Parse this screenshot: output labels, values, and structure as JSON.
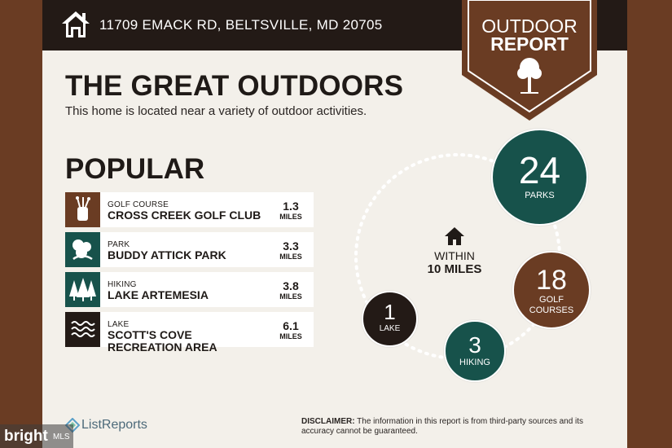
{
  "header": {
    "address": "11709 EMACK RD, BELTSVILLE, MD 20705",
    "home_icon": "house-icon"
  },
  "badge": {
    "line1": "OUTDOOR",
    "line2": "REPORT",
    "icon": "tree-icon"
  },
  "title": "THE GREAT OUTDOORS",
  "subtitle": "This home is located near a variety of outdoor activities.",
  "popular": {
    "heading": "POPULAR",
    "items": [
      {
        "category": "GOLF COURSE",
        "name": "CROSS CREEK GOLF CLUB",
        "distance": "1.3",
        "unit": "MILES",
        "icon": "golf-bag-icon",
        "color": "#6a3c23"
      },
      {
        "category": "PARK",
        "name": "BUDDY ATTICK PARK",
        "distance": "3.3",
        "unit": "MILES",
        "icon": "park-trees-icon",
        "color": "#17524b"
      },
      {
        "category": "HIKING",
        "name": "LAKE ARTEMESIA",
        "distance": "3.8",
        "unit": "MILES",
        "icon": "pine-trees-icon",
        "color": "#17524b"
      },
      {
        "category": "LAKE",
        "name": "SCOTT'S COVE RECREATION AREA",
        "distance": "6.1",
        "unit": "MILES",
        "icon": "waves-icon",
        "color": "#231a16"
      }
    ]
  },
  "within": {
    "line1": "WITHIN",
    "line2": "10 MILES",
    "icon": "house-icon"
  },
  "stats": {
    "parks": {
      "count": "24",
      "label": "PARKS",
      "color": "#17524b"
    },
    "golf": {
      "count": "18",
      "label1": "GOLF",
      "label2": "COURSES",
      "color": "#6a3c23"
    },
    "lake": {
      "count": "1",
      "label": "LAKE",
      "color": "#231a16"
    },
    "hiking": {
      "count": "3",
      "label": "HIKING",
      "color": "#17524b"
    }
  },
  "footer": {
    "logo_text": "ListReports",
    "disclaimer_label": "DISCLAIMER:",
    "disclaimer_text": "The information in this report is from third-party sources and its accuracy cannot be guaranteed."
  },
  "watermark": {
    "brand": "bright",
    "suffix": "MLS"
  }
}
